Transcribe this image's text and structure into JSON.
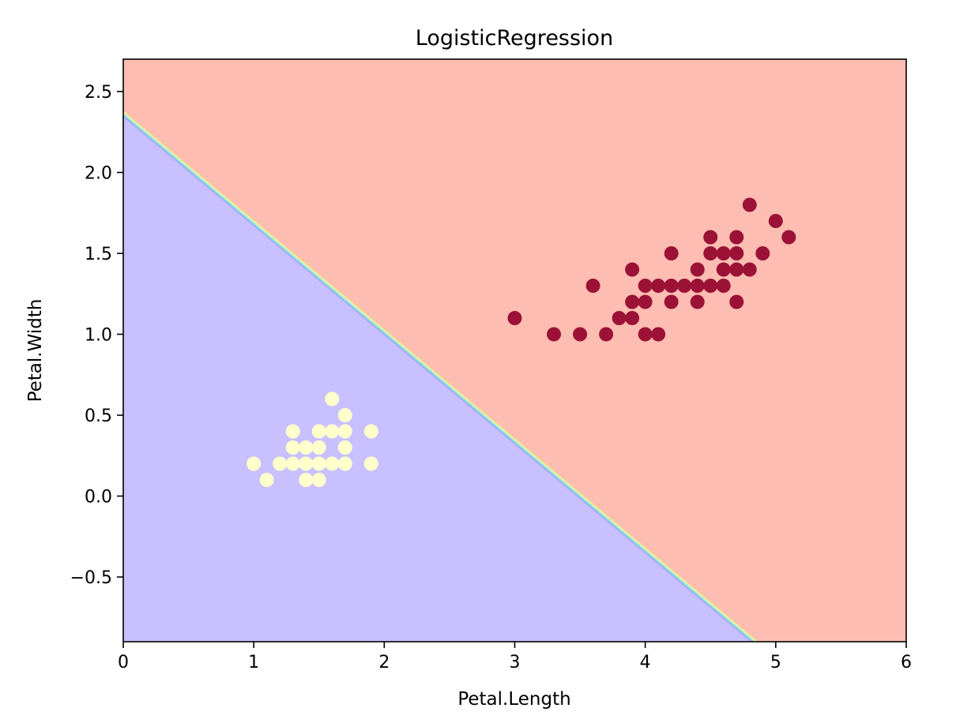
{
  "chart_data": {
    "type": "scatter",
    "title": "LogisticRegression",
    "xlabel": "Petal.Length",
    "ylabel": "Petal.Width",
    "xlim": [
      0,
      6
    ],
    "ylim": [
      -0.9,
      2.7
    ],
    "xticks": [
      0,
      1,
      2,
      3,
      4,
      5,
      6
    ],
    "xtick_labels": [
      "0",
      "1",
      "2",
      "3",
      "4",
      "5",
      "6"
    ],
    "yticks": [
      -0.5,
      0.0,
      0.5,
      1.0,
      1.5,
      2.0,
      2.5
    ],
    "ytick_labels": [
      "−0.5",
      "0.0",
      "0.5",
      "1.0",
      "1.5",
      "2.0",
      "2.5"
    ],
    "grid": false,
    "decision_regions": [
      {
        "class": 0,
        "color": "#c8c0ff"
      },
      {
        "class": 1,
        "color": "#febdb2"
      }
    ],
    "decision_boundary": {
      "x": [
        0,
        4.85
      ],
      "y": [
        2.37,
        -0.9
      ]
    },
    "series": [
      {
        "color": "#ffffcc",
        "points": [
          [
            1.0,
            0.2
          ],
          [
            1.1,
            0.1
          ],
          [
            1.2,
            0.2
          ],
          [
            1.3,
            0.2
          ],
          [
            1.3,
            0.3
          ],
          [
            1.3,
            0.4
          ],
          [
            1.4,
            0.1
          ],
          [
            1.4,
            0.2
          ],
          [
            1.4,
            0.3
          ],
          [
            1.5,
            0.1
          ],
          [
            1.5,
            0.2
          ],
          [
            1.5,
            0.3
          ],
          [
            1.5,
            0.4
          ],
          [
            1.6,
            0.2
          ],
          [
            1.6,
            0.4
          ],
          [
            1.6,
            0.6
          ],
          [
            1.7,
            0.2
          ],
          [
            1.7,
            0.3
          ],
          [
            1.7,
            0.4
          ],
          [
            1.7,
            0.5
          ],
          [
            1.9,
            0.2
          ],
          [
            1.9,
            0.4
          ]
        ]
      },
      {
        "color": "#9b1236",
        "points": [
          [
            3.0,
            1.1
          ],
          [
            3.3,
            1.0
          ],
          [
            3.5,
            1.0
          ],
          [
            3.6,
            1.3
          ],
          [
            3.7,
            1.0
          ],
          [
            3.8,
            1.1
          ],
          [
            3.9,
            1.1
          ],
          [
            3.9,
            1.2
          ],
          [
            3.9,
            1.4
          ],
          [
            4.0,
            1.0
          ],
          [
            4.0,
            1.2
          ],
          [
            4.0,
            1.3
          ],
          [
            4.1,
            1.0
          ],
          [
            4.1,
            1.3
          ],
          [
            4.2,
            1.2
          ],
          [
            4.2,
            1.3
          ],
          [
            4.2,
            1.5
          ],
          [
            4.3,
            1.3
          ],
          [
            4.4,
            1.2
          ],
          [
            4.4,
            1.3
          ],
          [
            4.4,
            1.4
          ],
          [
            4.5,
            1.3
          ],
          [
            4.5,
            1.5
          ],
          [
            4.5,
            1.6
          ],
          [
            4.6,
            1.3
          ],
          [
            4.6,
            1.4
          ],
          [
            4.6,
            1.5
          ],
          [
            4.7,
            1.2
          ],
          [
            4.7,
            1.4
          ],
          [
            4.7,
            1.5
          ],
          [
            4.7,
            1.6
          ],
          [
            4.8,
            1.4
          ],
          [
            4.8,
            1.8
          ],
          [
            4.9,
            1.5
          ],
          [
            5.0,
            1.7
          ],
          [
            5.1,
            1.6
          ]
        ]
      }
    ]
  }
}
